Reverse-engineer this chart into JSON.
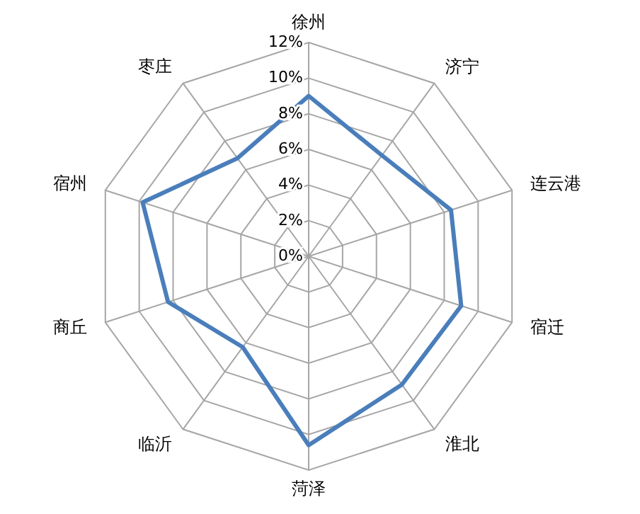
{
  "chart_data": {
    "type": "radar",
    "categories": [
      "徐州",
      "济宁",
      "连云港",
      "宿迁",
      "淮北",
      "菏泽",
      "临沂",
      "商丘",
      "宿州",
      "枣庄"
    ],
    "series": [
      {
        "color": "#4a7ebb",
        "values": [
          9.0,
          7.0,
          8.4,
          9.0,
          8.9,
          10.6,
          6.3,
          8.3,
          9.8,
          6.8
        ]
      }
    ],
    "ylim": [
      0,
      12
    ],
    "yticks": [
      {
        "value": 0,
        "label": "0%"
      },
      {
        "value": 2,
        "label": "2%"
      },
      {
        "value": 4,
        "label": "4%"
      },
      {
        "value": 6,
        "label": "6%"
      },
      {
        "value": 8,
        "label": "8%"
      },
      {
        "value": 10,
        "label": "10%"
      },
      {
        "value": 12,
        "label": "12%"
      }
    ],
    "grid": true
  }
}
